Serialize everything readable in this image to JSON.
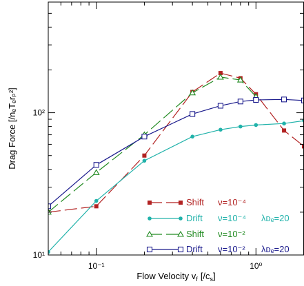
{
  "chart_data": {
    "type": "line",
    "xscale": "log",
    "yscale": "log",
    "xlim": [
      0.05,
      2
    ],
    "ylim": [
      10,
      600
    ],
    "grid": false,
    "legend_placement": "bottom-right",
    "xlabel": "Flow Velocity v",
    "xlabel_sub": "f",
    "xlabel_unit_open": "[/c",
    "xlabel_unit_sub": "s",
    "xlabel_unit_close": "]",
    "ylabel": "Drag Force [/nₑTₑrₚ²]",
    "x_ticks": [
      {
        "value": 0.1,
        "label": "10⁻¹"
      },
      {
        "value": 1,
        "label": "10⁰"
      }
    ],
    "y_ticks": [
      {
        "value": 10,
        "label": "10¹"
      },
      {
        "value": 100,
        "label": "10²"
      }
    ],
    "annotations": [
      {
        "text": "λᴅₑ=20",
        "color": "#20b2aa",
        "series_index": 1
      },
      {
        "text": "λᴅₑ=20",
        "color": "#1a1a8c",
        "series_index": 3
      }
    ],
    "series": [
      {
        "method": "Shift",
        "nu": "ν=10⁻⁴",
        "color": "#b22222",
        "marker": "square-filled",
        "dash": "long",
        "x": [
          0.05,
          0.1,
          0.2,
          0.4,
          0.6,
          0.8,
          1.0,
          1.5,
          2.0
        ],
        "y": [
          20,
          22,
          50,
          140,
          190,
          175,
          135,
          75,
          58
        ]
      },
      {
        "method": "Drift",
        "nu": "ν=10⁻⁴",
        "color": "#20b2aa",
        "marker": "circle-filled",
        "dash": "solid",
        "x": [
          0.05,
          0.1,
          0.2,
          0.4,
          0.6,
          0.8,
          1.0,
          1.5,
          2.0
        ],
        "y": [
          10.5,
          24,
          46,
          68,
          76,
          80,
          82,
          84,
          88
        ]
      },
      {
        "method": "Shift",
        "nu": "ν=10⁻²",
        "color": "#228b22",
        "marker": "triangle-open",
        "dash": "long",
        "x": [
          0.05,
          0.1,
          0.2,
          0.4,
          0.6,
          0.8,
          1.0
        ],
        "y": [
          20,
          38,
          70,
          138,
          178,
          170,
          130
        ]
      },
      {
        "method": "Drift",
        "nu": "ν=10⁻²",
        "color": "#1a1a8c",
        "marker": "square-open",
        "dash": "solid",
        "x": [
          0.05,
          0.1,
          0.2,
          0.4,
          0.6,
          0.8,
          1.0,
          1.5,
          2.0
        ],
        "y": [
          22,
          43,
          68,
          98,
          112,
          120,
          123,
          124,
          122
        ]
      }
    ]
  }
}
